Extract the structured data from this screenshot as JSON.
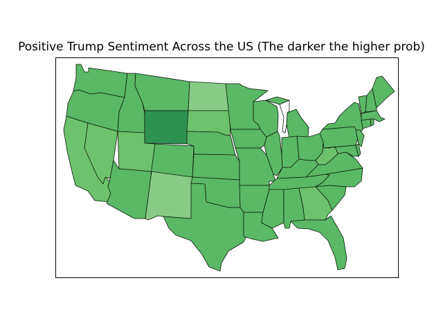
{
  "title": "Positive Trump Sentiment Across the US (The darker the higher prob)",
  "colors": {
    "light": "#86cc86",
    "mid_light": "#6dc26d",
    "mid": "#5ab866",
    "dark": "#2e9150",
    "border": "#0b1a0b",
    "lake": "#ffffff"
  },
  "states": [
    {
      "name": "Washington",
      "shade": "mid"
    },
    {
      "name": "Oregon",
      "shade": "mid"
    },
    {
      "name": "California",
      "shade": "mid_light"
    },
    {
      "name": "Nevada",
      "shade": "mid_light"
    },
    {
      "name": "Idaho",
      "shade": "mid"
    },
    {
      "name": "Montana",
      "shade": "mid"
    },
    {
      "name": "Wyoming",
      "shade": "dark"
    },
    {
      "name": "Utah",
      "shade": "mid_light"
    },
    {
      "name": "Arizona",
      "shade": "mid"
    },
    {
      "name": "Colorado",
      "shade": "mid"
    },
    {
      "name": "New Mexico",
      "shade": "light"
    },
    {
      "name": "North Dakota",
      "shade": "light"
    },
    {
      "name": "South Dakota",
      "shade": "mid_light"
    },
    {
      "name": "Nebraska",
      "shade": "mid"
    },
    {
      "name": "Kansas",
      "shade": "mid"
    },
    {
      "name": "Oklahoma",
      "shade": "mid"
    },
    {
      "name": "Texas",
      "shade": "mid"
    },
    {
      "name": "Minnesota",
      "shade": "mid"
    },
    {
      "name": "Iowa",
      "shade": "mid"
    },
    {
      "name": "Missouri",
      "shade": "mid"
    },
    {
      "name": "Arkansas",
      "shade": "mid"
    },
    {
      "name": "Louisiana",
      "shade": "mid"
    },
    {
      "name": "Wisconsin",
      "shade": "mid"
    },
    {
      "name": "Illinois",
      "shade": "mid"
    },
    {
      "name": "Michigan",
      "shade": "mid"
    },
    {
      "name": "Indiana",
      "shade": "mid"
    },
    {
      "name": "Ohio",
      "shade": "mid"
    },
    {
      "name": "Kentucky",
      "shade": "mid"
    },
    {
      "name": "Tennessee",
      "shade": "mid"
    },
    {
      "name": "Mississippi",
      "shade": "mid"
    },
    {
      "name": "Alabama",
      "shade": "mid"
    },
    {
      "name": "Georgia",
      "shade": "mid_light"
    },
    {
      "name": "Florida",
      "shade": "mid"
    },
    {
      "name": "South Carolina",
      "shade": "mid"
    },
    {
      "name": "North Carolina",
      "shade": "mid"
    },
    {
      "name": "Virginia",
      "shade": "mid"
    },
    {
      "name": "West Virginia",
      "shade": "mid_light"
    },
    {
      "name": "Pennsylvania",
      "shade": "mid"
    },
    {
      "name": "New York",
      "shade": "mid"
    },
    {
      "name": "Maryland",
      "shade": "mid"
    },
    {
      "name": "Delaware",
      "shade": "mid"
    },
    {
      "name": "New Jersey",
      "shade": "mid"
    },
    {
      "name": "Connecticut",
      "shade": "mid"
    },
    {
      "name": "Rhode Island",
      "shade": "mid"
    },
    {
      "name": "Massachusetts",
      "shade": "mid"
    },
    {
      "name": "Vermont",
      "shade": "mid"
    },
    {
      "name": "New Hampshire",
      "shade": "mid"
    },
    {
      "name": "Maine",
      "shade": "mid"
    }
  ]
}
